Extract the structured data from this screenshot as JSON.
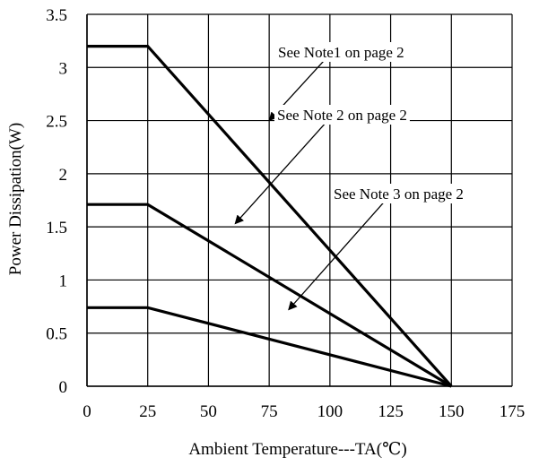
{
  "chart_data": {
    "type": "line",
    "title": "",
    "xlabel": "Ambient Temperature---TA(℃)",
    "ylabel": "Power Dissipation(W)",
    "xlim": [
      0,
      175
    ],
    "ylim": [
      0,
      3.5
    ],
    "x_ticks": [
      "0",
      "25",
      "50",
      "75",
      "100",
      "125",
      "150",
      "175"
    ],
    "y_ticks": [
      "0",
      "0.5",
      "1",
      "1.5",
      "2",
      "2.5",
      "3",
      "3.5"
    ],
    "x_tick_values": [
      0,
      25,
      50,
      75,
      100,
      125,
      150,
      175
    ],
    "y_tick_values": [
      0,
      0.5,
      1,
      1.5,
      2,
      2.5,
      3,
      3.5
    ],
    "grid": true,
    "series": [
      {
        "points": [
          [
            0,
            3.2
          ],
          [
            25,
            3.2
          ],
          [
            150,
            0
          ]
        ]
      },
      {
        "points": [
          [
            0,
            1.71
          ],
          [
            25,
            1.71
          ],
          [
            150,
            0
          ]
        ]
      },
      {
        "points": [
          [
            0,
            0.74
          ],
          [
            25,
            0.74
          ],
          [
            150,
            0
          ]
        ]
      }
    ],
    "annotations": [
      {
        "text": "See Note1 on page 2",
        "arrow_tail": [
          103,
          3.2
        ],
        "arrow_head": [
          75,
          2.5
        ]
      },
      {
        "text": "See Note 2 on page 2",
        "arrow_tail": [
          103,
          2.6
        ],
        "arrow_head": [
          61,
          1.53
        ]
      },
      {
        "text": "See Note 3 on page 2",
        "arrow_tail": [
          126,
          1.83
        ],
        "arrow_head": [
          83,
          0.72
        ]
      }
    ]
  }
}
